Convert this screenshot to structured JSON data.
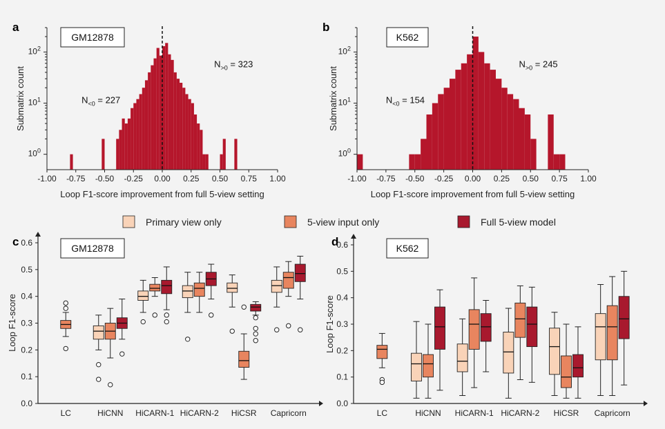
{
  "colors": {
    "background": "#f3f3f3",
    "hist_fill": "#b5162b",
    "primary_view_only": "#f9d3b8",
    "five_view_input_only": "#e8855f",
    "full_five_view_model": "#a8192e",
    "outline": "#222222"
  },
  "legend": {
    "items": [
      {
        "label": "Primary view only",
        "color_key": "primary_view_only"
      },
      {
        "label": "5-view input only",
        "color_key": "five_view_input_only"
      },
      {
        "label": "Full 5-view model",
        "color_key": "full_five_view_model"
      }
    ]
  },
  "chart_data": [
    {
      "panel": "a",
      "type": "histogram",
      "cell_line": "GM12878",
      "xlabel": "Loop F1-score improvement from full 5-view setting",
      "ylabel": "Submatrix count",
      "xlim": [
        -1.0,
        1.0
      ],
      "ylim": [
        0.5,
        300
      ],
      "y_scale": "log",
      "x_ticks": [
        "-1.00",
        "-0.75",
        "-0.50",
        "-0.25",
        "0.00",
        "0.25",
        "0.50",
        "0.75",
        "1.00"
      ],
      "y_ticks": [
        {
          "base": "10",
          "exp": "0",
          "value": 1
        },
        {
          "base": "10",
          "exp": "1",
          "value": 10
        },
        {
          "base": "10",
          "exp": "2",
          "value": 100
        }
      ],
      "bin_width": 0.025,
      "bin_starts": [
        -0.8,
        -0.525,
        -0.4,
        -0.375,
        -0.35,
        -0.325,
        -0.3,
        -0.275,
        -0.25,
        -0.225,
        -0.2,
        -0.175,
        -0.15,
        -0.125,
        -0.1,
        -0.075,
        -0.05,
        -0.025,
        0.0,
        0.025,
        0.05,
        0.075,
        0.1,
        0.125,
        0.15,
        0.175,
        0.2,
        0.225,
        0.25,
        0.275,
        0.3,
        0.325,
        0.35,
        0.375,
        0.5,
        0.525,
        0.625
      ],
      "counts": [
        1,
        2,
        2,
        3,
        5,
        4,
        5,
        8,
        10,
        12,
        15,
        20,
        28,
        40,
        55,
        75,
        120,
        85,
        130,
        150,
        90,
        70,
        40,
        30,
        25,
        20,
        15,
        12,
        10,
        6,
        4,
        3,
        1,
        1,
        1,
        2,
        2
      ],
      "zero_line": 0.0,
      "annotations": [
        {
          "text": "N",
          "sub": "<0",
          "rest": " = 227",
          "x": -0.7,
          "y": 10
        },
        {
          "text": "N",
          "sub": ">0",
          "rest": " = 323",
          "x": 0.45,
          "y": 50
        }
      ]
    },
    {
      "panel": "b",
      "type": "histogram",
      "cell_line": "K562",
      "xlabel": "Loop F1-score improvement from full 5-view setting",
      "ylabel": "Submatrix count",
      "xlim": [
        -1.0,
        1.0
      ],
      "ylim": [
        0.5,
        300
      ],
      "y_scale": "log",
      "x_ticks": [
        "-1.00",
        "-0.75",
        "-0.50",
        "-0.25",
        "0.00",
        "0.25",
        "0.50",
        "0.75",
        "1.00"
      ],
      "y_ticks": [
        {
          "base": "10",
          "exp": "0",
          "value": 1
        },
        {
          "base": "10",
          "exp": "1",
          "value": 10
        },
        {
          "base": "10",
          "exp": "2",
          "value": 100
        }
      ],
      "bin_width": 0.05,
      "bin_starts": [
        -1.0,
        -0.55,
        -0.5,
        -0.45,
        -0.4,
        -0.35,
        -0.3,
        -0.25,
        -0.2,
        -0.15,
        -0.1,
        -0.05,
        0.0,
        0.05,
        0.1,
        0.15,
        0.2,
        0.25,
        0.3,
        0.35,
        0.4,
        0.45,
        0.5,
        0.65,
        0.7,
        0.75
      ],
      "counts": [
        1,
        1,
        1,
        2,
        6,
        10,
        15,
        20,
        30,
        45,
        60,
        90,
        200,
        100,
        60,
        45,
        30,
        20,
        15,
        12,
        8,
        6,
        2,
        6,
        1,
        1
      ],
      "zero_line": 0.0,
      "annotations": [
        {
          "text": "N",
          "sub": "<0",
          "rest": " = 154",
          "x": -0.75,
          "y": 10
        },
        {
          "text": "N",
          "sub": ">0",
          "rest": " = 245",
          "x": 0.4,
          "y": 50
        }
      ]
    },
    {
      "panel": "c",
      "type": "box",
      "cell_line": "GM12878",
      "ylabel": "Loop F1-score",
      "ylim": [
        0.0,
        0.6
      ],
      "y_ticks": [
        "0.0",
        "0.1",
        "0.2",
        "0.3",
        "0.4",
        "0.5",
        "0.6"
      ],
      "categories": [
        "LC",
        "HiCNN",
        "HiCARN-1",
        "HiCARN-2",
        "HiCSR",
        "Capricorn"
      ],
      "series": [
        {
          "name": "Primary view only",
          "color_key": "primary_view_only",
          "boxes": [
            null,
            {
              "whislo": 0.2,
              "q1": 0.24,
              "med": 0.27,
              "q3": 0.29,
              "whishi": 0.33,
              "fliers": [
                0.145,
                0.09
              ]
            },
            {
              "whislo": 0.34,
              "q1": 0.385,
              "med": 0.4,
              "q3": 0.42,
              "whishi": 0.46,
              "fliers": [
                0.305
              ]
            },
            {
              "whislo": 0.34,
              "q1": 0.395,
              "med": 0.42,
              "q3": 0.44,
              "whishi": 0.49,
              "fliers": [
                0.24
              ]
            },
            {
              "whislo": 0.36,
              "q1": 0.415,
              "med": 0.43,
              "q3": 0.45,
              "whishi": 0.48,
              "fliers": [
                0.27
              ]
            },
            {
              "whislo": 0.36,
              "q1": 0.415,
              "med": 0.44,
              "q3": 0.46,
              "whishi": 0.51,
              "fliers": [
                0.275
              ]
            }
          ]
        },
        {
          "name": "5-view input only",
          "color_key": "five_view_input_only",
          "boxes": [
            {
              "whislo": 0.25,
              "q1": 0.28,
              "med": 0.295,
              "q3": 0.31,
              "whishi": 0.34,
              "fliers": [
                0.375,
                0.355,
                0.205
              ]
            },
            {
              "whislo": 0.17,
              "q1": 0.24,
              "med": 0.27,
              "q3": 0.3,
              "whishi": 0.355,
              "fliers": [
                0.07
              ]
            },
            {
              "whislo": 0.4,
              "q1": 0.42,
              "med": 0.43,
              "q3": 0.445,
              "whishi": 0.47,
              "fliers": [
                0.33
              ]
            },
            {
              "whislo": 0.34,
              "q1": 0.4,
              "med": 0.43,
              "q3": 0.45,
              "whishi": 0.49,
              "fliers": []
            },
            {
              "whislo": 0.09,
              "q1": 0.135,
              "med": 0.16,
              "q3": 0.195,
              "whishi": 0.26,
              "fliers": [
                0.36
              ]
            },
            {
              "whislo": 0.4,
              "q1": 0.43,
              "med": 0.47,
              "q3": 0.49,
              "whishi": 0.53,
              "fliers": [
                0.29
              ]
            }
          ]
        },
        {
          "name": "Full 5-view model",
          "color_key": "full_five_view_model",
          "boxes": [
            null,
            {
              "whislo": 0.24,
              "q1": 0.28,
              "med": 0.3,
              "q3": 0.32,
              "whishi": 0.39,
              "fliers": [
                0.185
              ]
            },
            {
              "whislo": 0.35,
              "q1": 0.41,
              "med": 0.44,
              "q3": 0.46,
              "whishi": 0.51,
              "fliers": [
                0.33,
                0.305
              ]
            },
            {
              "whislo": 0.39,
              "q1": 0.44,
              "med": 0.465,
              "q3": 0.49,
              "whishi": 0.52,
              "fliers": [
                0.33
              ]
            },
            {
              "whislo": 0.33,
              "q1": 0.345,
              "med": 0.36,
              "q3": 0.37,
              "whishi": 0.38,
              "fliers": [
                0.32,
                0.28,
                0.26,
                0.235
              ]
            },
            {
              "whislo": 0.39,
              "q1": 0.455,
              "med": 0.485,
              "q3": 0.52,
              "whishi": 0.55,
              "fliers": [
                0.275
              ]
            }
          ]
        }
      ]
    },
    {
      "panel": "d",
      "type": "box",
      "cell_line": "K562",
      "ylabel": "Loop F1-score",
      "ylim": [
        0.0,
        0.6
      ],
      "y_ticks": [
        "0.0",
        "0.1",
        "0.2",
        "0.3",
        "0.4",
        "0.5",
        "0.6"
      ],
      "categories": [
        "LC",
        "HiCNN",
        "HiCARN-1",
        "HiCARN-2",
        "HiCSR",
        "Capricorn"
      ],
      "series": [
        {
          "name": "Primary view only",
          "color_key": "primary_view_only",
          "boxes": [
            null,
            {
              "whislo": 0.02,
              "q1": 0.085,
              "med": 0.15,
              "q3": 0.19,
              "whishi": 0.31,
              "fliers": []
            },
            {
              "whislo": 0.03,
              "q1": 0.12,
              "med": 0.16,
              "q3": 0.225,
              "whishi": 0.32,
              "fliers": []
            },
            {
              "whislo": 0.02,
              "q1": 0.115,
              "med": 0.195,
              "q3": 0.27,
              "whishi": 0.36,
              "fliers": []
            },
            {
              "whislo": 0.03,
              "q1": 0.11,
              "med": 0.215,
              "q3": 0.285,
              "whishi": 0.345,
              "fliers": []
            },
            {
              "whislo": 0.03,
              "q1": 0.165,
              "med": 0.29,
              "q3": 0.34,
              "whishi": 0.45,
              "fliers": []
            }
          ]
        },
        {
          "name": "5-view input only",
          "color_key": "five_view_input_only",
          "boxes": [
            {
              "whislo": 0.135,
              "q1": 0.17,
              "med": 0.205,
              "q3": 0.22,
              "whishi": 0.265,
              "fliers": [
                0.09,
                0.08
              ]
            },
            {
              "whislo": 0.02,
              "q1": 0.1,
              "med": 0.15,
              "q3": 0.185,
              "whishi": 0.3,
              "fliers": []
            },
            {
              "whislo": 0.06,
              "q1": 0.205,
              "med": 0.3,
              "q3": 0.355,
              "whishi": 0.475,
              "fliers": []
            },
            {
              "whislo": 0.09,
              "q1": 0.25,
              "med": 0.32,
              "q3": 0.38,
              "whishi": 0.445,
              "fliers": []
            },
            {
              "whislo": 0.02,
              "q1": 0.06,
              "med": 0.1,
              "q3": 0.18,
              "whishi": 0.3,
              "fliers": []
            },
            {
              "whislo": 0.03,
              "q1": 0.165,
              "med": 0.29,
              "q3": 0.37,
              "whishi": 0.48,
              "fliers": []
            }
          ]
        },
        {
          "name": "Full 5-view model",
          "color_key": "full_five_view_model",
          "boxes": [
            null,
            {
              "whislo": 0.05,
              "q1": 0.205,
              "med": 0.29,
              "q3": 0.365,
              "whishi": 0.43,
              "fliers": []
            },
            {
              "whislo": 0.12,
              "q1": 0.235,
              "med": 0.29,
              "q3": 0.34,
              "whishi": 0.39,
              "fliers": []
            },
            {
              "whislo": 0.08,
              "q1": 0.215,
              "med": 0.3,
              "q3": 0.365,
              "whishi": 0.44,
              "fliers": []
            },
            {
              "whislo": 0.02,
              "q1": 0.1,
              "med": 0.135,
              "q3": 0.185,
              "whishi": 0.29,
              "fliers": []
            },
            {
              "whislo": 0.07,
              "q1": 0.245,
              "med": 0.32,
              "q3": 0.405,
              "whishi": 0.5,
              "fliers": []
            }
          ]
        }
      ]
    }
  ]
}
